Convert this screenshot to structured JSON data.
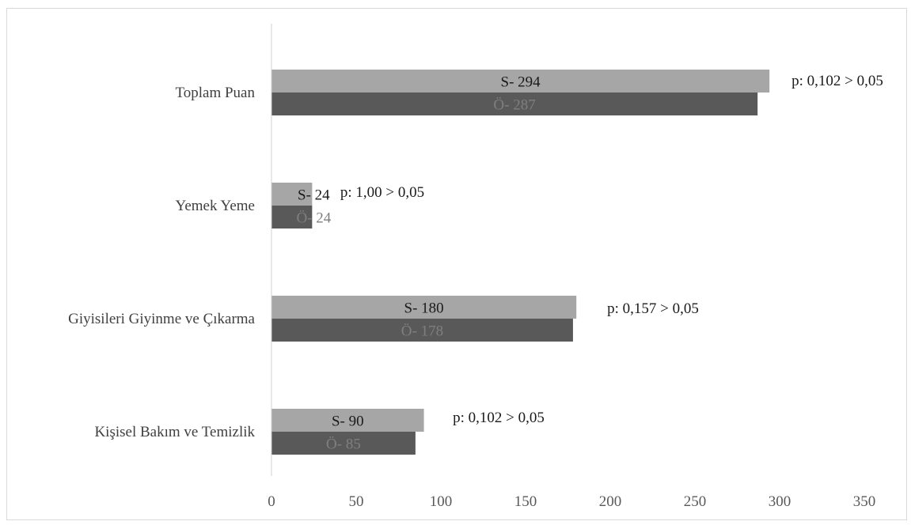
{
  "chart_data": {
    "type": "bar",
    "orientation": "horizontal",
    "categories": [
      "Kişisel Bakım ve Temizlik",
      "Giyisileri Giyinme ve Çıkarma",
      "Yemek Yeme",
      "Toplam Puan"
    ],
    "series": [
      {
        "key": "S",
        "color": "#a6a6a6",
        "label_color": "#1a1a1a",
        "values": [
          90,
          180,
          24,
          294
        ],
        "labels": [
          "S- 90",
          "S- 180",
          "S- 24",
          "S- 294"
        ]
      },
      {
        "key": "Ö",
        "color": "#595959",
        "label_color": "#7f7f7f",
        "values": [
          85,
          178,
          24,
          287
        ],
        "labels": [
          "Ö- 85",
          "Ö- 178",
          "Ö- 24",
          "Ö- 287"
        ]
      }
    ],
    "annotations": [
      "p: 0,102 > 0,05",
      "p: 0,157 > 0,05",
      "p: 1,00 > 0,05",
      "p: 0,102 > 0,05"
    ],
    "xlim": [
      0,
      350
    ],
    "xticks": [
      0,
      50,
      100,
      150,
      200,
      250,
      300,
      350
    ],
    "xtick_labels": [
      "0",
      "50",
      "100",
      "150",
      "200",
      "250",
      "300",
      "350"
    ],
    "grid": false,
    "legend": "none"
  }
}
